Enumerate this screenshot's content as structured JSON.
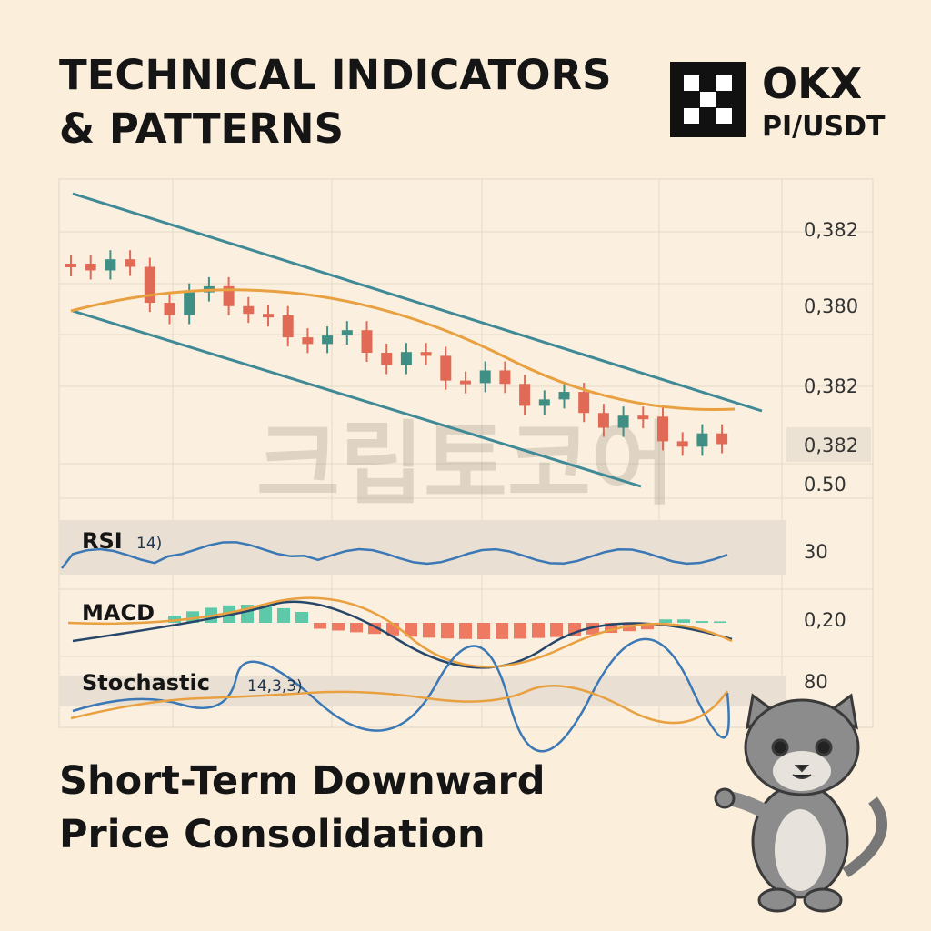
{
  "header": {
    "title_line1": "TECHNICAL INDICATORS",
    "title_line2": "& PATTERNS"
  },
  "brand": {
    "name": "OKX",
    "pair": "PI/USDT"
  },
  "axis_labels": [
    "0,382",
    "0,380",
    "0,382",
    "0,382",
    "0.50",
    "30",
    "0,20",
    "80"
  ],
  "indicators": {
    "rsi": {
      "name": "RSI",
      "params": "14)"
    },
    "macd": {
      "name": "MACD"
    },
    "stochastic": {
      "name": "Stochastic",
      "params": "14,3,3)"
    }
  },
  "watermark": "크립토코어",
  "footer": {
    "line1": "Short-Term Downward",
    "line2": "Price Consolidation"
  }
}
